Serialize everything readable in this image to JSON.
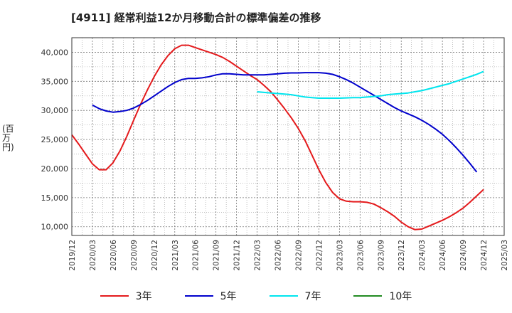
{
  "title": "[4911]  経常利益12か月移動合計の標準偏差の推移",
  "unit_label": "(百万円)",
  "chart_data": {
    "type": "line",
    "ylim": [
      8500,
      42500
    ],
    "y_ticks": [
      10000,
      15000,
      20000,
      25000,
      30000,
      35000,
      40000
    ],
    "y_tick_labels": [
      "10,000",
      "15,000",
      "20,000",
      "25,000",
      "30,000",
      "35,000",
      "40,000"
    ],
    "x_ticks": [
      "2019/12",
      "2020/03",
      "2020/06",
      "2020/09",
      "2020/12",
      "2021/03",
      "2021/06",
      "2021/09",
      "2021/12",
      "2022/03",
      "2022/06",
      "2022/09",
      "2022/12",
      "2023/03",
      "2023/06",
      "2023/09",
      "2023/12",
      "2024/03",
      "2024/06",
      "2024/09",
      "2024/12",
      "2025/03"
    ],
    "grid": true,
    "legend_position": "bottom",
    "series": [
      {
        "name": "3年",
        "color": "#e41a1c",
        "points": [
          [
            "2019/12",
            25800
          ],
          [
            "2020/01",
            24200
          ],
          [
            "2020/02",
            22500
          ],
          [
            "2020/03",
            20800
          ],
          [
            "2020/04",
            19800
          ],
          [
            "2020/05",
            19800
          ],
          [
            "2020/06",
            21000
          ],
          [
            "2020/07",
            23000
          ],
          [
            "2020/08",
            25500
          ],
          [
            "2020/09",
            28300
          ],
          [
            "2020/10",
            31000
          ],
          [
            "2020/11",
            33500
          ],
          [
            "2020/12",
            35800
          ],
          [
            "2021/01",
            37800
          ],
          [
            "2021/02",
            39400
          ],
          [
            "2021/03",
            40600
          ],
          [
            "2021/04",
            41200
          ],
          [
            "2021/05",
            41200
          ],
          [
            "2021/06",
            40800
          ],
          [
            "2021/07",
            40400
          ],
          [
            "2021/08",
            40000
          ],
          [
            "2021/09",
            39600
          ],
          [
            "2021/10",
            39100
          ],
          [
            "2021/11",
            38400
          ],
          [
            "2021/12",
            37600
          ],
          [
            "2022/01",
            36800
          ],
          [
            "2022/02",
            36000
          ],
          [
            "2022/03",
            35300
          ],
          [
            "2022/04",
            34300
          ],
          [
            "2022/05",
            33200
          ],
          [
            "2022/06",
            31800
          ],
          [
            "2022/07",
            30300
          ],
          [
            "2022/08",
            28700
          ],
          [
            "2022/09",
            26900
          ],
          [
            "2022/10",
            24800
          ],
          [
            "2022/11",
            22300
          ],
          [
            "2022/12",
            19800
          ],
          [
            "2023/01",
            17600
          ],
          [
            "2023/02",
            15900
          ],
          [
            "2023/03",
            14800
          ],
          [
            "2023/04",
            14400
          ],
          [
            "2023/05",
            14300
          ],
          [
            "2023/06",
            14300
          ],
          [
            "2023/07",
            14200
          ],
          [
            "2023/08",
            13900
          ],
          [
            "2023/09",
            13300
          ],
          [
            "2023/10",
            12600
          ],
          [
            "2023/11",
            11800
          ],
          [
            "2023/12",
            10800
          ],
          [
            "2024/01",
            10000
          ],
          [
            "2024/02",
            9500
          ],
          [
            "2024/03",
            9600
          ],
          [
            "2024/04",
            10100
          ],
          [
            "2024/05",
            10600
          ],
          [
            "2024/06",
            11100
          ],
          [
            "2024/07",
            11700
          ],
          [
            "2024/08",
            12400
          ],
          [
            "2024/09",
            13200
          ],
          [
            "2024/10",
            14200
          ],
          [
            "2024/11",
            15300
          ],
          [
            "2024/12",
            16400
          ]
        ]
      },
      {
        "name": "5年",
        "color": "#0000cc",
        "points": [
          [
            "2020/03",
            30900
          ],
          [
            "2020/04",
            30300
          ],
          [
            "2020/05",
            29900
          ],
          [
            "2020/06",
            29700
          ],
          [
            "2020/07",
            29800
          ],
          [
            "2020/08",
            30000
          ],
          [
            "2020/09",
            30400
          ],
          [
            "2020/10",
            31000
          ],
          [
            "2020/11",
            31700
          ],
          [
            "2020/12",
            32500
          ],
          [
            "2021/01",
            33300
          ],
          [
            "2021/02",
            34100
          ],
          [
            "2021/03",
            34800
          ],
          [
            "2021/04",
            35300
          ],
          [
            "2021/05",
            35500
          ],
          [
            "2021/06",
            35500
          ],
          [
            "2021/07",
            35600
          ],
          [
            "2021/08",
            35800
          ],
          [
            "2021/09",
            36100
          ],
          [
            "2021/10",
            36300
          ],
          [
            "2021/11",
            36300
          ],
          [
            "2021/12",
            36200
          ],
          [
            "2022/01",
            36100
          ],
          [
            "2022/02",
            36100
          ],
          [
            "2022/03",
            36100
          ],
          [
            "2022/04",
            36100
          ],
          [
            "2022/05",
            36200
          ],
          [
            "2022/06",
            36300
          ],
          [
            "2022/07",
            36400
          ],
          [
            "2022/08",
            36450
          ],
          [
            "2022/09",
            36450
          ],
          [
            "2022/10",
            36500
          ],
          [
            "2022/11",
            36500
          ],
          [
            "2022/12",
            36500
          ],
          [
            "2023/01",
            36400
          ],
          [
            "2023/02",
            36200
          ],
          [
            "2023/03",
            35800
          ],
          [
            "2023/04",
            35300
          ],
          [
            "2023/05",
            34700
          ],
          [
            "2023/06",
            34000
          ],
          [
            "2023/07",
            33300
          ],
          [
            "2023/08",
            32600
          ],
          [
            "2023/09",
            31900
          ],
          [
            "2023/10",
            31200
          ],
          [
            "2023/11",
            30500
          ],
          [
            "2023/12",
            29900
          ],
          [
            "2024/01",
            29400
          ],
          [
            "2024/02",
            28900
          ],
          [
            "2024/03",
            28300
          ],
          [
            "2024/04",
            27600
          ],
          [
            "2024/05",
            26800
          ],
          [
            "2024/06",
            25900
          ],
          [
            "2024/07",
            24800
          ],
          [
            "2024/08",
            23600
          ],
          [
            "2024/09",
            22300
          ],
          [
            "2024/10",
            20900
          ],
          [
            "2024/11",
            19400
          ]
        ]
      },
      {
        "name": "7年",
        "color": "#00e5ee",
        "points": [
          [
            "2022/03",
            33200
          ],
          [
            "2022/04",
            33100
          ],
          [
            "2022/05",
            33000
          ],
          [
            "2022/06",
            32900
          ],
          [
            "2022/07",
            32800
          ],
          [
            "2022/08",
            32700
          ],
          [
            "2022/09",
            32500
          ],
          [
            "2022/10",
            32300
          ],
          [
            "2022/11",
            32200
          ],
          [
            "2022/12",
            32100
          ],
          [
            "2023/01",
            32100
          ],
          [
            "2023/02",
            32100
          ],
          [
            "2023/03",
            32100
          ],
          [
            "2023/04",
            32150
          ],
          [
            "2023/05",
            32200
          ],
          [
            "2023/06",
            32200
          ],
          [
            "2023/07",
            32300
          ],
          [
            "2023/08",
            32400
          ],
          [
            "2023/09",
            32500
          ],
          [
            "2023/10",
            32700
          ],
          [
            "2023/11",
            32800
          ],
          [
            "2023/12",
            32900
          ],
          [
            "2024/01",
            33000
          ],
          [
            "2024/02",
            33200
          ],
          [
            "2024/03",
            33400
          ],
          [
            "2024/04",
            33700
          ],
          [
            "2024/05",
            34000
          ],
          [
            "2024/06",
            34300
          ],
          [
            "2024/07",
            34600
          ],
          [
            "2024/08",
            35000
          ],
          [
            "2024/09",
            35400
          ],
          [
            "2024/10",
            35800
          ],
          [
            "2024/11",
            36200
          ],
          [
            "2024/12",
            36700
          ]
        ]
      },
      {
        "name": "10年",
        "color": "#228b22",
        "points": []
      }
    ]
  }
}
